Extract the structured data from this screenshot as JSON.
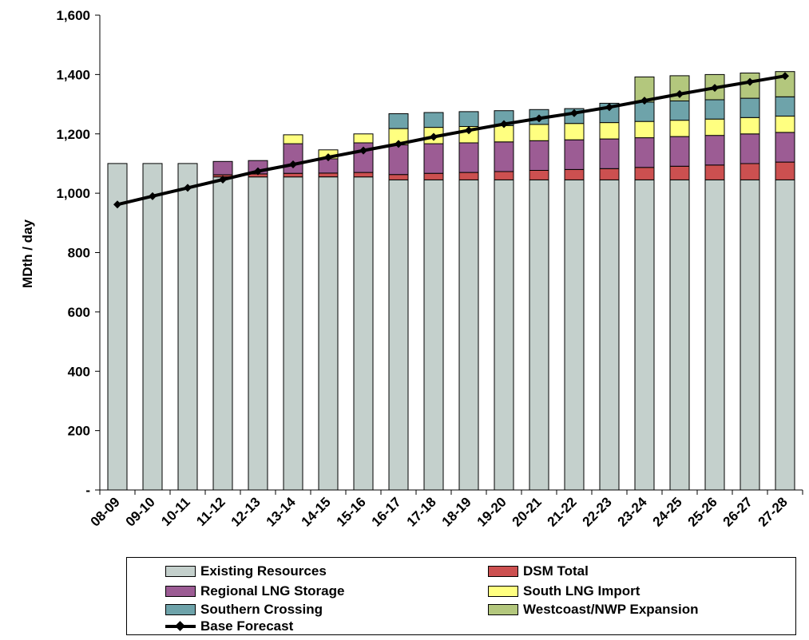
{
  "chart_data": {
    "type": "bar",
    "stacked": true,
    "title": "",
    "xlabel": "",
    "ylabel": "MDth / day",
    "ylim": [
      0,
      1600
    ],
    "yticks": [
      {
        "value": 0,
        "label": "-"
      },
      {
        "value": 200,
        "label": "200"
      },
      {
        "value": 400,
        "label": "400"
      },
      {
        "value": 600,
        "label": "600"
      },
      {
        "value": 800,
        "label": "800"
      },
      {
        "value": 1000,
        "label": "1,000"
      },
      {
        "value": 1200,
        "label": "1,200"
      },
      {
        "value": 1400,
        "label": "1,400"
      },
      {
        "value": 1600,
        "label": "1,600"
      }
    ],
    "grid": false,
    "legend_position": "bottom",
    "categories": [
      "08-09",
      "09-10",
      "10-11",
      "11-12",
      "12-13",
      "13-14",
      "14-15",
      "15-16",
      "16-17",
      "17-18",
      "18-19",
      "19-20",
      "20-21",
      "21-22",
      "22-23",
      "23-24",
      "24-25",
      "25-26",
      "26-27",
      "27-28"
    ],
    "series": [
      {
        "name": "Existing Resources",
        "color": "#c4d0cc",
        "values": [
          1100,
          1100,
          1100,
          1055,
          1055,
          1055,
          1055,
          1055,
          1045,
          1045,
          1045,
          1045,
          1045,
          1045,
          1045,
          1045,
          1045,
          1045,
          1045,
          1045
        ]
      },
      {
        "name": "DSM Total",
        "color": "#cc5050",
        "values": [
          0,
          0,
          0,
          7,
          10,
          12,
          13,
          15,
          18,
          22,
          25,
          28,
          32,
          35,
          38,
          42,
          46,
          50,
          55,
          60
        ]
      },
      {
        "name": "Regional LNG Storage",
        "color": "#9c5c94",
        "values": [
          0,
          0,
          0,
          45,
          45,
          100,
          48,
          100,
          100,
          100,
          100,
          100,
          100,
          100,
          100,
          100,
          100,
          100,
          100,
          100
        ]
      },
      {
        "name": "South LNG Import",
        "color": "#ffff80",
        "values": [
          0,
          0,
          0,
          0,
          0,
          30,
          30,
          30,
          55,
          55,
          55,
          55,
          55,
          55,
          55,
          55,
          55,
          55,
          55,
          55
        ]
      },
      {
        "name": "Southern Crossing",
        "color": "#6ea3aa",
        "values": [
          0,
          0,
          0,
          0,
          0,
          0,
          0,
          0,
          50,
          50,
          50,
          50,
          50,
          50,
          65,
          65,
          65,
          65,
          65,
          65
        ]
      },
      {
        "name": "Westcoast/NWP Expansion",
        "color": "#b3c77d",
        "values": [
          0,
          0,
          0,
          0,
          0,
          0,
          0,
          0,
          0,
          0,
          0,
          0,
          0,
          0,
          0,
          85,
          85,
          85,
          85,
          85
        ]
      }
    ],
    "line_series": {
      "name": "Base Forecast",
      "color": "#000000",
      "values": [
        962,
        990,
        1018,
        1046,
        1074,
        1097,
        1121,
        1144,
        1166,
        1190,
        1212,
        1233,
        1252,
        1270,
        1290,
        1312,
        1334,
        1355,
        1375,
        1395
      ]
    }
  }
}
